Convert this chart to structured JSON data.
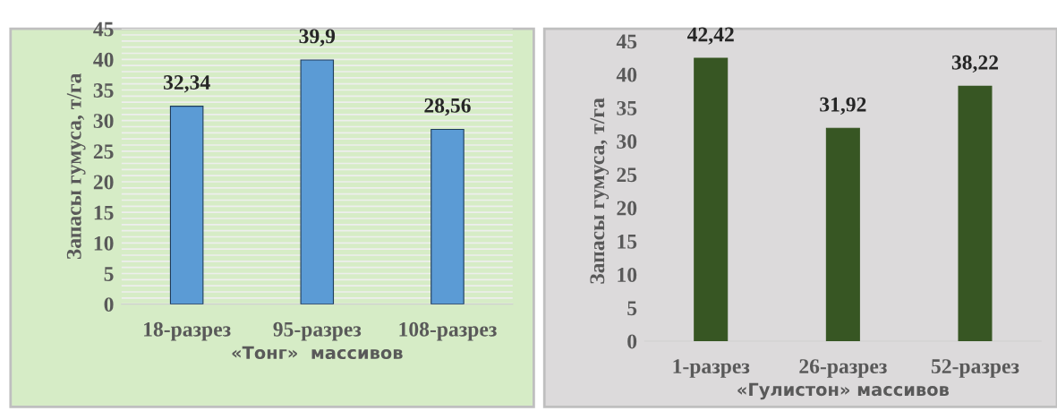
{
  "chart_data": [
    {
      "type": "bar",
      "categories": [
        "18-разрез",
        "95-разрез",
        "108-разрез"
      ],
      "values": [
        32.34,
        39.9,
        28.56
      ],
      "color": "#5b9bd5",
      "xlabel": "«Тонг»  массивов",
      "ylabel": "Запасы гумуса, т/га",
      "ylim": [
        0,
        45
      ],
      "yticks": [
        0,
        5,
        10,
        15,
        20,
        25,
        30,
        35,
        40,
        45
      ],
      "value_labels": [
        "32,34",
        "39,9",
        "28,56"
      ],
      "grid": "y"
    },
    {
      "type": "bar",
      "categories": [
        "1-разрез",
        "26-разрез",
        "52-разрез"
      ],
      "values": [
        42.42,
        31.92,
        38.22
      ],
      "color": "#375623",
      "xlabel": "«Гулистон» массивов",
      "ylabel": "Запасы гумуса, т/га",
      "ylim": [
        0,
        45
      ],
      "yticks": [
        0,
        5,
        10,
        15,
        20,
        25,
        30,
        35,
        40,
        45
      ],
      "value_labels": [
        "42,42",
        "31,92",
        "38,22"
      ],
      "grid": false
    }
  ]
}
